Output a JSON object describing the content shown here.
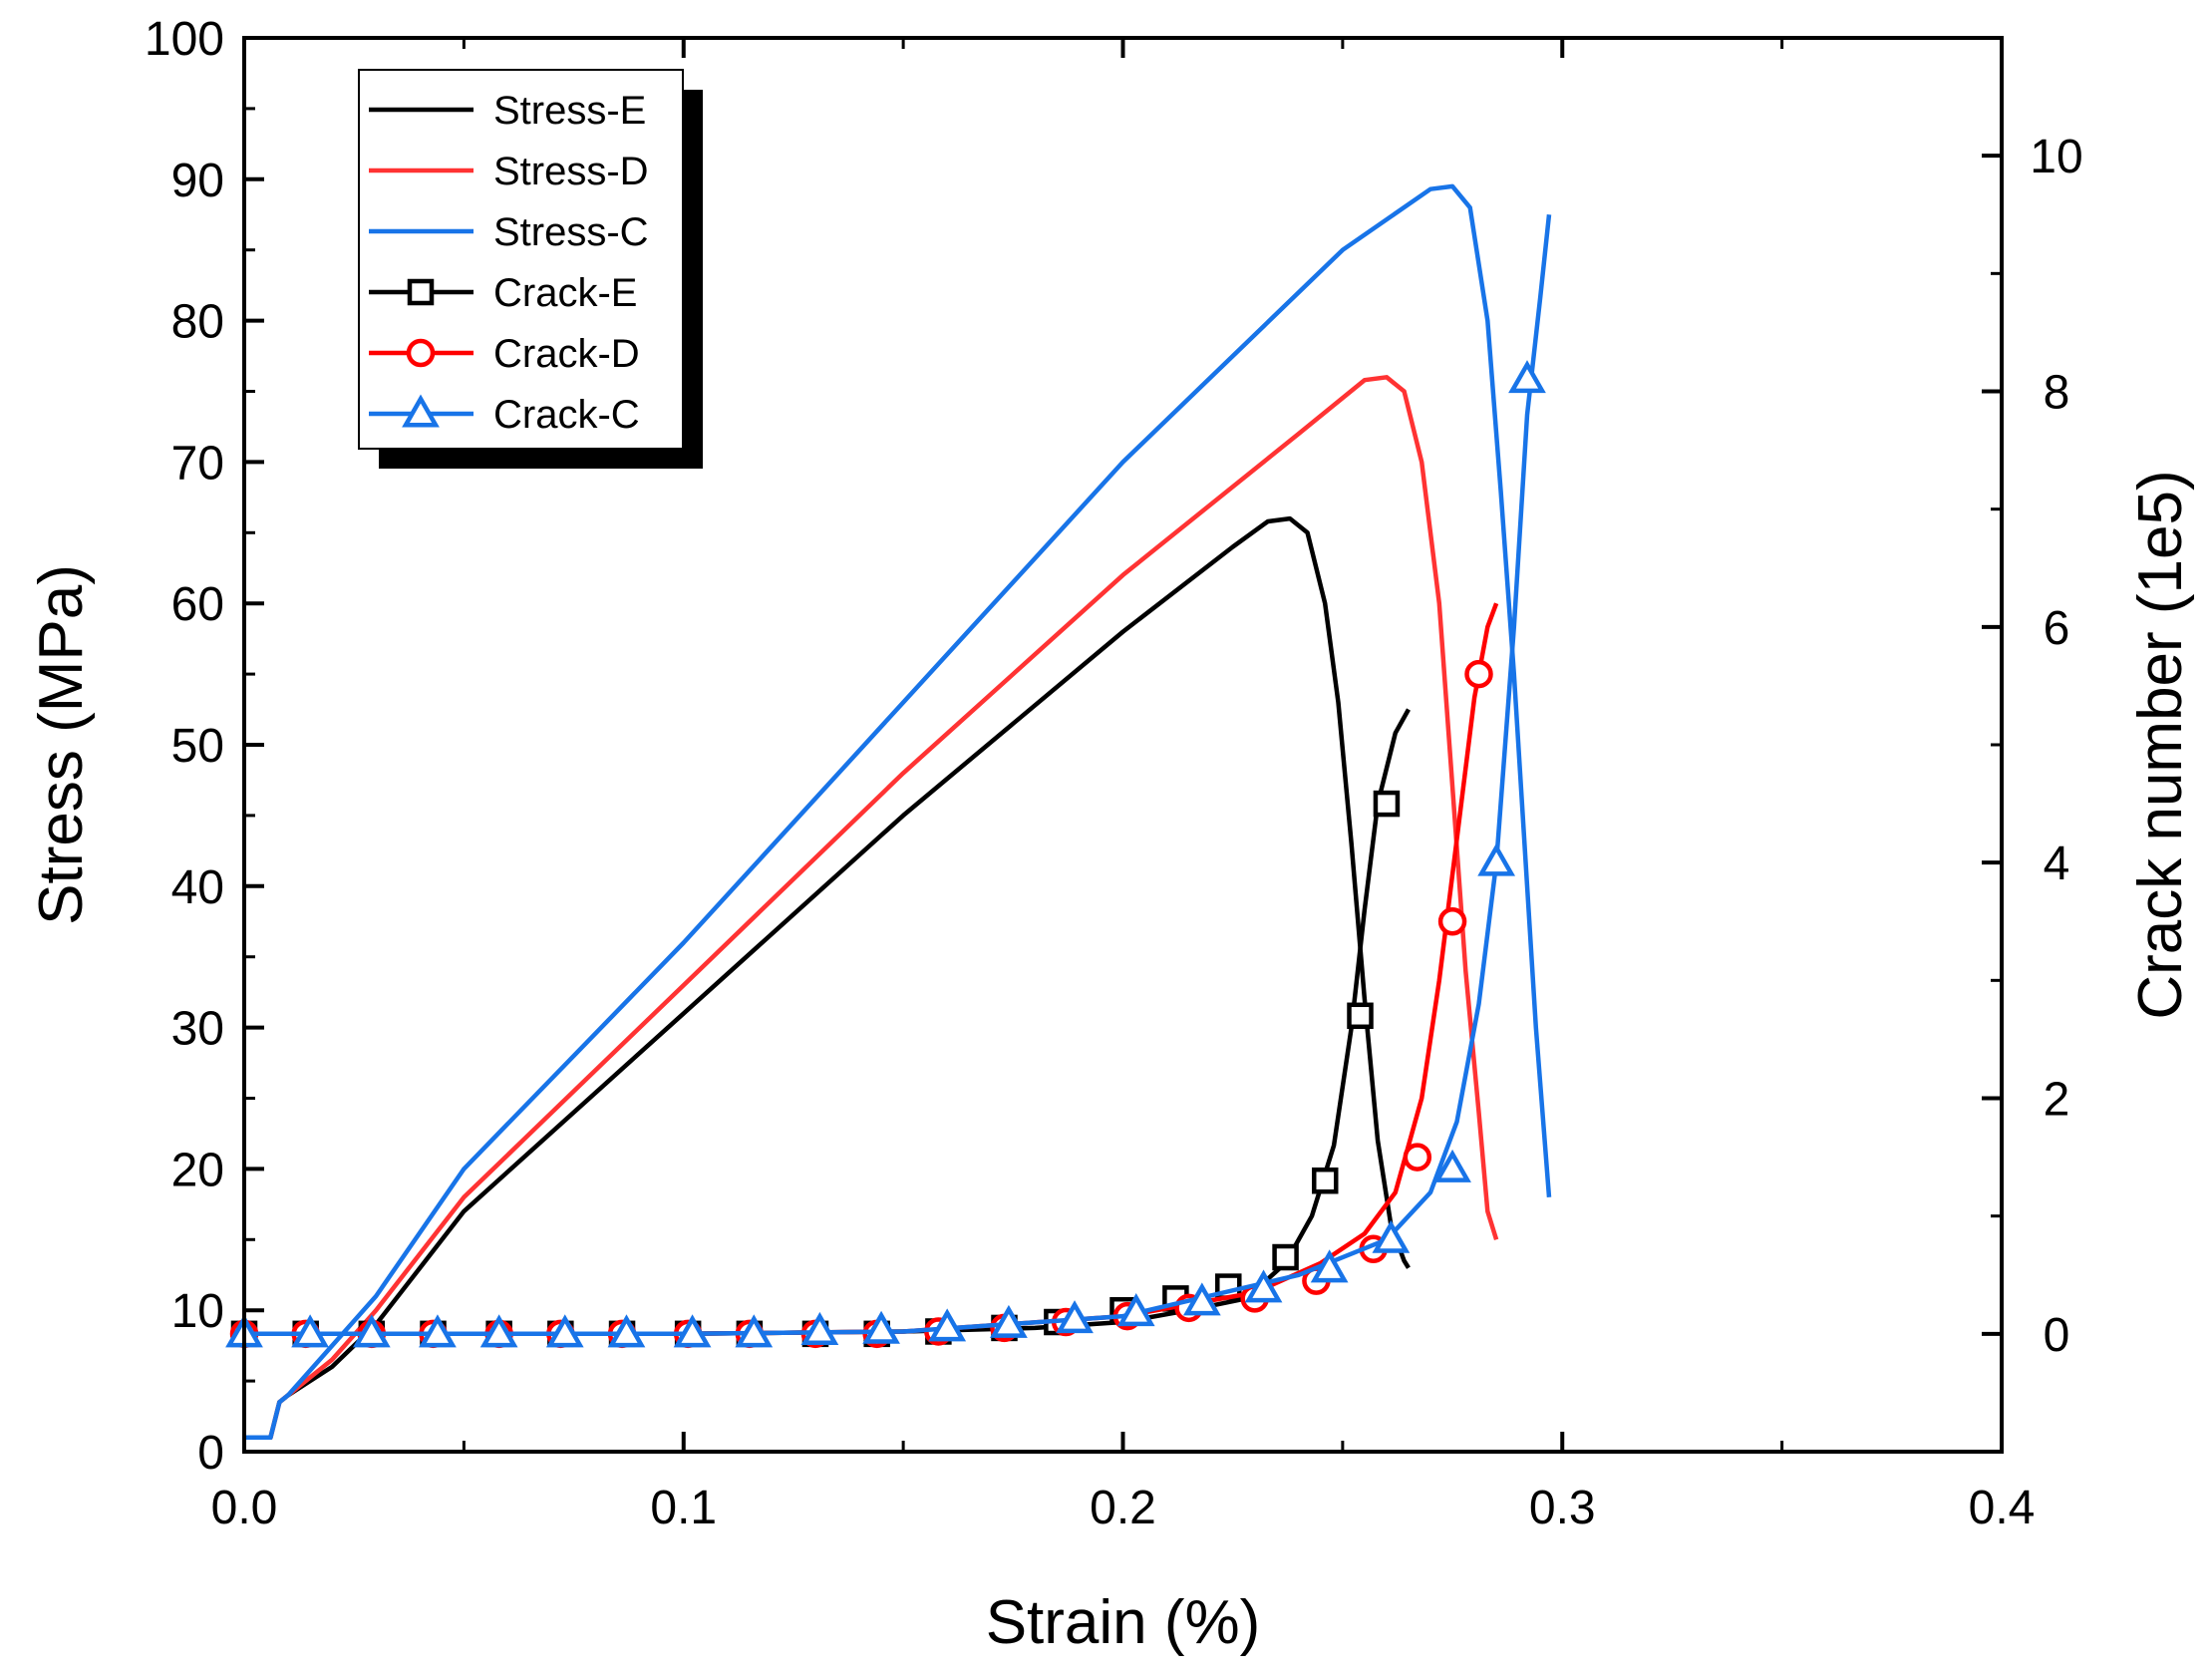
{
  "chart_data": {
    "type": "line",
    "title": "",
    "xlabel": "Strain (%)",
    "ylabel": "Stress (MPa)",
    "y2label": "Crack number (1e5)",
    "xlim": [
      0.0,
      0.4
    ],
    "ylim": [
      0,
      100
    ],
    "y2lim": [
      -1,
      11
    ],
    "x_ticks": [
      "0.0",
      "0.1",
      "0.2",
      "0.3",
      "0.4"
    ],
    "y_ticks": [
      "0",
      "10",
      "20",
      "30",
      "40",
      "50",
      "60",
      "70",
      "80",
      "90",
      "100"
    ],
    "y2_ticks": [
      "0",
      "2",
      "4",
      "6",
      "8",
      "10"
    ],
    "grid": false,
    "legend_position": "top-left",
    "series": [
      {
        "name": "Stress-E",
        "axis": "left",
        "color": "#000000",
        "marker": "none",
        "x": [
          0.0,
          0.006,
          0.008,
          0.01,
          0.02,
          0.03,
          0.05,
          0.1,
          0.15,
          0.2,
          0.225,
          0.233,
          0.238,
          0.242,
          0.246,
          0.249,
          0.252,
          0.255,
          0.258,
          0.261,
          0.264,
          0.265
        ],
        "y": [
          1.0,
          1.0,
          3.5,
          4.0,
          6.0,
          9.0,
          17.0,
          31.0,
          45.0,
          58.0,
          64.0,
          65.8,
          66.0,
          65.0,
          60.0,
          53.0,
          43.0,
          32.0,
          22.0,
          16.0,
          13.5,
          13.0
        ]
      },
      {
        "name": "Stress-D",
        "axis": "left",
        "color": "#ff3333",
        "marker": "none",
        "x": [
          0.0,
          0.006,
          0.008,
          0.01,
          0.02,
          0.03,
          0.05,
          0.1,
          0.15,
          0.2,
          0.24,
          0.255,
          0.26,
          0.264,
          0.268,
          0.272,
          0.275,
          0.278,
          0.281,
          0.283,
          0.285
        ],
        "y": [
          1.0,
          1.0,
          3.5,
          4.0,
          6.5,
          10.0,
          18.0,
          33.0,
          48.0,
          62.0,
          72.0,
          75.8,
          76.0,
          75.0,
          70.0,
          60.0,
          47.0,
          34.0,
          24.0,
          17.0,
          15.0
        ]
      },
      {
        "name": "Stress-C",
        "axis": "left",
        "color": "#1874e8",
        "marker": "none",
        "x": [
          0.0,
          0.006,
          0.008,
          0.01,
          0.02,
          0.03,
          0.05,
          0.1,
          0.15,
          0.2,
          0.25,
          0.27,
          0.275,
          0.279,
          0.283,
          0.286,
          0.289,
          0.292,
          0.294,
          0.296,
          0.297
        ],
        "y": [
          1.0,
          1.0,
          3.5,
          4.0,
          7.5,
          11.0,
          20.0,
          36.0,
          53.0,
          70.0,
          85.0,
          89.3,
          89.5,
          88.0,
          80.0,
          68.0,
          55.0,
          40.0,
          30.0,
          22.0,
          18.0
        ]
      },
      {
        "name": "Crack-E",
        "axis": "right",
        "color": "#000000",
        "marker": "square",
        "x": [
          0.0,
          0.05,
          0.1,
          0.15,
          0.18,
          0.2,
          0.215,
          0.228,
          0.237,
          0.243,
          0.248,
          0.252,
          0.255,
          0.258,
          0.262,
          0.265
        ],
        "y": [
          0.0,
          0.0,
          0.0,
          0.02,
          0.05,
          0.1,
          0.2,
          0.3,
          0.6,
          1.0,
          1.6,
          2.6,
          3.6,
          4.5,
          5.1,
          5.3
        ],
        "markers_x": [
          0.0,
          0.014,
          0.029,
          0.043,
          0.058,
          0.072,
          0.086,
          0.101,
          0.115,
          0.13,
          0.144,
          0.158,
          0.173,
          0.185,
          0.2,
          0.212,
          0.224,
          0.237,
          0.246,
          0.254,
          0.26
        ],
        "markers_y": [
          0.0,
          0.0,
          0.0,
          0.0,
          0.0,
          0.0,
          0.0,
          0.0,
          0.0,
          0.0,
          0.0,
          0.02,
          0.05,
          0.1,
          0.2,
          0.3,
          0.4,
          0.65,
          1.3,
          2.7,
          4.5
        ]
      },
      {
        "name": "Crack-D",
        "axis": "right",
        "color": "#ff0000",
        "marker": "circle",
        "x": [
          0.0,
          0.05,
          0.1,
          0.15,
          0.2,
          0.23,
          0.245,
          0.255,
          0.262,
          0.268,
          0.272,
          0.276,
          0.28,
          0.283,
          0.285
        ],
        "y": [
          0.0,
          0.0,
          0.0,
          0.02,
          0.15,
          0.35,
          0.6,
          0.85,
          1.2,
          2.0,
          3.0,
          4.2,
          5.4,
          6.0,
          6.2
        ],
        "markers_x": [
          0.0,
          0.014,
          0.029,
          0.043,
          0.058,
          0.072,
          0.086,
          0.101,
          0.115,
          0.13,
          0.144,
          0.158,
          0.173,
          0.187,
          0.201,
          0.215,
          0.23,
          0.244,
          0.257,
          0.267,
          0.275,
          0.281
        ],
        "markers_y": [
          0.0,
          0.0,
          0.0,
          0.0,
          0.0,
          0.0,
          0.0,
          0.0,
          0.0,
          0.0,
          0.0,
          0.02,
          0.05,
          0.1,
          0.15,
          0.22,
          0.3,
          0.45,
          0.72,
          1.5,
          3.5,
          5.6
        ]
      },
      {
        "name": "Crack-C",
        "axis": "right",
        "color": "#1874e8",
        "marker": "triangle",
        "x": [
          0.0,
          0.05,
          0.1,
          0.15,
          0.2,
          0.24,
          0.26,
          0.27,
          0.276,
          0.281,
          0.285,
          0.289,
          0.292,
          0.295,
          0.297
        ],
        "y": [
          0.0,
          0.0,
          0.0,
          0.02,
          0.15,
          0.5,
          0.8,
          1.2,
          1.8,
          2.8,
          4.0,
          6.0,
          7.8,
          8.8,
          9.5
        ],
        "markers_x": [
          0.0,
          0.015,
          0.029,
          0.044,
          0.058,
          0.073,
          0.087,
          0.102,
          0.116,
          0.131,
          0.145,
          0.16,
          0.174,
          0.189,
          0.203,
          0.218,
          0.232,
          0.247,
          0.261,
          0.275,
          0.285,
          0.292
        ],
        "markers_y": [
          0.0,
          0.0,
          0.0,
          0.0,
          0.0,
          0.0,
          0.0,
          0.0,
          0.0,
          0.02,
          0.03,
          0.05,
          0.08,
          0.12,
          0.18,
          0.27,
          0.38,
          0.55,
          0.8,
          1.4,
          4.0,
          8.1
        ]
      }
    ]
  }
}
